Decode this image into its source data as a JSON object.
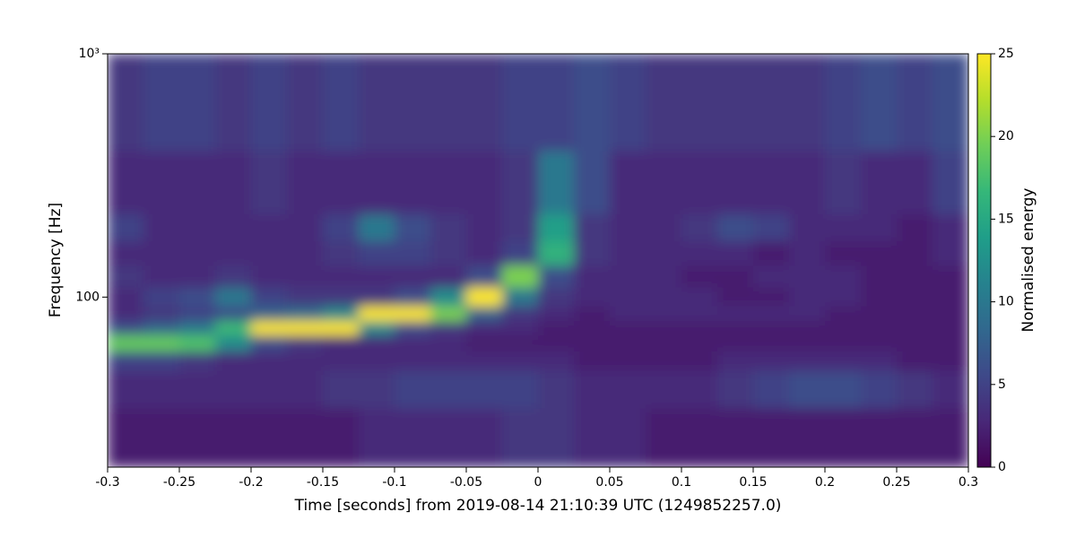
{
  "chart_data": {
    "type": "heatmap",
    "xlabel": "Time [seconds] from 2019-08-14 21:10:39 UTC (1249852257.0)",
    "ylabel": "Frequency [Hz]",
    "colorbar_label": "Normalised energy",
    "yscale": "log",
    "xlim": [
      -0.3,
      0.3
    ],
    "ylim": [
      20,
      1000
    ],
    "xticks": [
      -0.3,
      -0.25,
      -0.2,
      -0.15,
      -0.1,
      -0.05,
      0,
      0.05,
      0.1,
      0.15,
      0.2,
      0.25,
      0.3
    ],
    "yticks": [
      100,
      {
        "value": 1000,
        "label": "10³"
      }
    ],
    "zlim": [
      0,
      25
    ],
    "zticks": [
      0,
      5,
      10,
      15,
      20,
      25
    ],
    "colormap": [
      "#440154",
      "#482878",
      "#3e4989",
      "#31688e",
      "#26828e",
      "#1f9e89",
      "#35b779",
      "#6ece58",
      "#b5de2b",
      "#fde725"
    ],
    "x_edges": [
      -0.3,
      -0.275,
      -0.25,
      -0.225,
      -0.2,
      -0.175,
      -0.15,
      -0.125,
      -0.1,
      -0.075,
      -0.05,
      -0.025,
      0,
      0.025,
      0.05,
      0.075,
      0.1,
      0.125,
      0.15,
      0.175,
      0.2,
      0.225,
      0.25,
      0.275,
      0.3
    ],
    "y_edges": [
      20,
      35,
      50,
      60,
      70,
      80,
      92,
      110,
      135,
      170,
      220,
      400,
      1000
    ],
    "z": [
      [
        2,
        2,
        2,
        2,
        2,
        2,
        2,
        3,
        3,
        3,
        3,
        4,
        4,
        3,
        3,
        2,
        2,
        2,
        2,
        2,
        2,
        2,
        2,
        2
      ],
      [
        3,
        3,
        3,
        3,
        3,
        3,
        4,
        4,
        5,
        5,
        5,
        5,
        4,
        3,
        3,
        3,
        3,
        4,
        5,
        6,
        6,
        5,
        4,
        3
      ],
      [
        5,
        5,
        4,
        3,
        3,
        3,
        3,
        3,
        3,
        3,
        3,
        3,
        3,
        2,
        2,
        2,
        2,
        3,
        3,
        3,
        3,
        3,
        2,
        2
      ],
      [
        19,
        19,
        18,
        12,
        6,
        4,
        3,
        3,
        3,
        3,
        2,
        2,
        2,
        2,
        2,
        2,
        2,
        2,
        2,
        2,
        2,
        2,
        2,
        2
      ],
      [
        6,
        8,
        10,
        17,
        25,
        25,
        25,
        12,
        6,
        4,
        3,
        3,
        2,
        2,
        2,
        2,
        2,
        2,
        2,
        2,
        2,
        2,
        2,
        2
      ],
      [
        3,
        4,
        5,
        6,
        8,
        9,
        12,
        25,
        25,
        20,
        8,
        4,
        3,
        2,
        3,
        3,
        3,
        3,
        3,
        3,
        2,
        2,
        2,
        2
      ],
      [
        3,
        5,
        6,
        10,
        5,
        4,
        4,
        4,
        6,
        12,
        25,
        10,
        4,
        3,
        3,
        3,
        3,
        2,
        2,
        3,
        3,
        2,
        2,
        2
      ],
      [
        4,
        3,
        3,
        4,
        3,
        3,
        3,
        3,
        3,
        3,
        6,
        20,
        6,
        3,
        3,
        3,
        2,
        2,
        3,
        3,
        3,
        2,
        2,
        2
      ],
      [
        3,
        3,
        3,
        3,
        3,
        3,
        4,
        5,
        5,
        4,
        3,
        5,
        16,
        4,
        3,
        3,
        3,
        3,
        2,
        3,
        2,
        2,
        2,
        3
      ],
      [
        5,
        3,
        3,
        3,
        3,
        3,
        5,
        10,
        6,
        4,
        3,
        4,
        14,
        4,
        3,
        3,
        4,
        6,
        5,
        3,
        3,
        3,
        2,
        3
      ],
      [
        3,
        3,
        3,
        3,
        4,
        3,
        3,
        3,
        3,
        3,
        3,
        4,
        10,
        6,
        3,
        3,
        3,
        3,
        3,
        3,
        4,
        3,
        3,
        5
      ],
      [
        4,
        5,
        5,
        4,
        5,
        4,
        5,
        4,
        4,
        4,
        4,
        5,
        5,
        6,
        5,
        4,
        4,
        4,
        4,
        4,
        5,
        6,
        5,
        6
      ]
    ]
  }
}
